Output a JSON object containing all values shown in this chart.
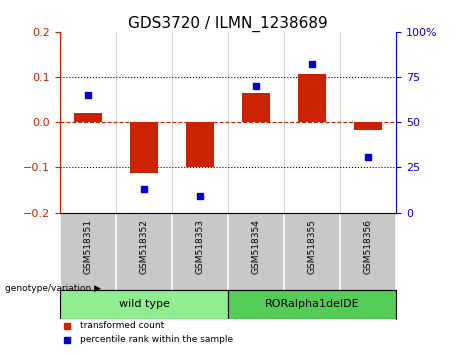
{
  "title": "GDS3720 / ILMN_1238689",
  "samples": [
    "GSM518351",
    "GSM518352",
    "GSM518353",
    "GSM518354",
    "GSM518355",
    "GSM518356"
  ],
  "transformed_count": [
    0.02,
    -0.113,
    -0.1,
    0.065,
    0.107,
    -0.018
  ],
  "percentile_rank": [
    65,
    13,
    9,
    70,
    82,
    31
  ],
  "ylim_left": [
    -0.2,
    0.2
  ],
  "ylim_right": [
    0,
    100
  ],
  "yticks_left": [
    -0.2,
    -0.1,
    0,
    0.1,
    0.2
  ],
  "yticks_right": [
    0,
    25,
    50,
    75,
    100
  ],
  "ytick_labels_right": [
    "0",
    "25",
    "50",
    "75",
    "100%"
  ],
  "groups": [
    {
      "label": "wild type",
      "indices": [
        0,
        1,
        2
      ],
      "color": "#90EE90"
    },
    {
      "label": "RORalpha1delDE",
      "indices": [
        3,
        4,
        5
      ],
      "color": "#55CC55"
    }
  ],
  "bar_color": "#CC2200",
  "dot_color": "#0000CC",
  "bar_width": 0.5,
  "hline_color": "#CC2200",
  "dotted_hlines": [
    -0.1,
    0.1
  ],
  "legend_items": [
    {
      "label": "transformed count",
      "color": "#CC2200"
    },
    {
      "label": "percentile rank within the sample",
      "color": "#0000CC"
    }
  ],
  "genotype_label": "genotype/variation",
  "background_color": "#FFFFFF",
  "xlab_bg_color": "#C8C8C8",
  "title_fontsize": 11
}
